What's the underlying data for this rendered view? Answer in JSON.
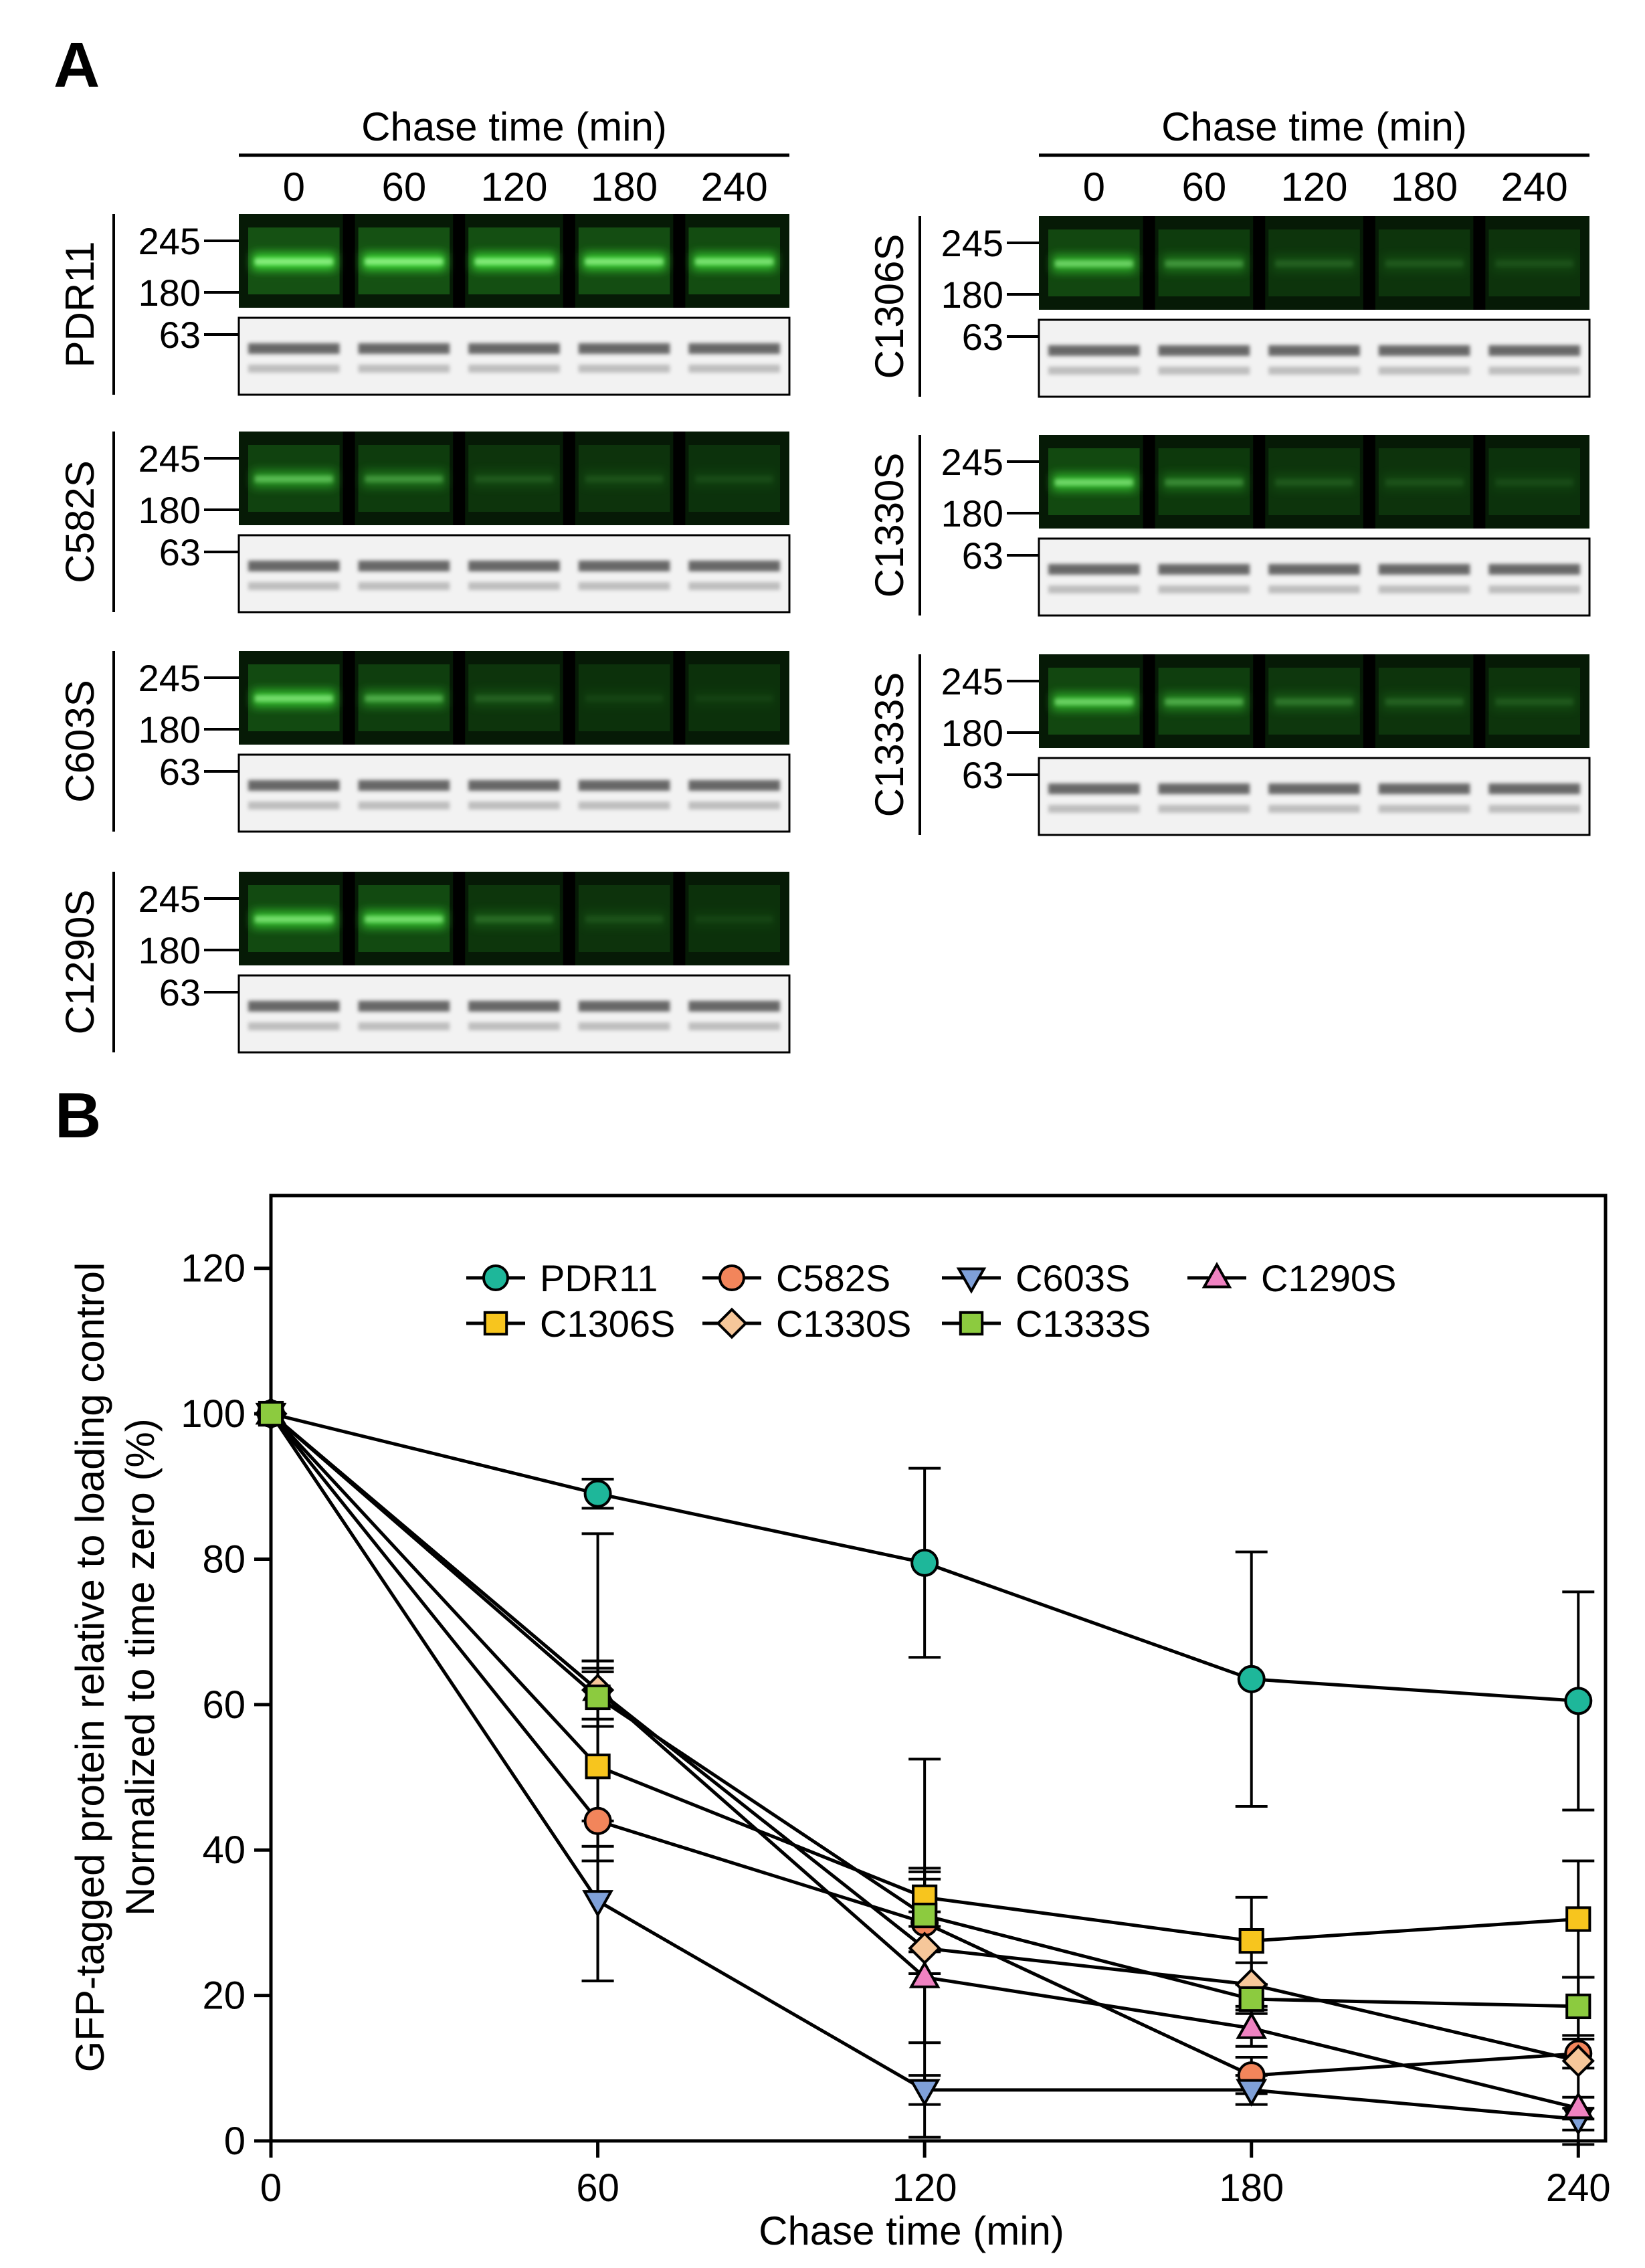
{
  "figure": {
    "panel_a_label": "A",
    "panel_b_label": "B"
  },
  "blots": {
    "header_title": "Chase time (min)",
    "time_labels": [
      "0",
      "60",
      "120",
      "180",
      "240"
    ],
    "mw_labels": [
      "245",
      "180",
      "63"
    ],
    "left_column": [
      {
        "name": "PDR11",
        "gfp_intensity": [
          1.0,
          1.0,
          0.95,
          0.9,
          0.85
        ]
      },
      {
        "name": "C582S",
        "gfp_intensity": [
          0.55,
          0.35,
          0.12,
          0.1,
          0.08
        ]
      },
      {
        "name": "C603S",
        "gfp_intensity": [
          0.8,
          0.45,
          0.15,
          0.06,
          0.05
        ]
      },
      {
        "name": "C1290S",
        "gfp_intensity": [
          0.8,
          0.8,
          0.18,
          0.1,
          0.06
        ]
      }
    ],
    "right_column": [
      {
        "name": "C1306S",
        "gfp_intensity": [
          0.7,
          0.35,
          0.15,
          0.12,
          0.1
        ]
      },
      {
        "name": "C1330S",
        "gfp_intensity": [
          0.75,
          0.3,
          0.12,
          0.1,
          0.08
        ]
      },
      {
        "name": "C1333S",
        "gfp_intensity": [
          0.7,
          0.45,
          0.22,
          0.15,
          0.12
        ]
      }
    ],
    "colors": {
      "gfp": "#37d231",
      "gel_bg": "#f2f2f2",
      "gel_band": "#3a3a3a"
    }
  },
  "chart_data": {
    "type": "line",
    "xlabel": "Chase time (min)",
    "ylabel_line1": "GFP-tagged protein relative to loading control",
    "ylabel_line2": "Normalized to time zero (%)",
    "x": [
      0,
      60,
      120,
      180,
      240
    ],
    "xlim": [
      0,
      245
    ],
    "ylim": [
      0,
      130
    ],
    "xticks": [
      0,
      60,
      120,
      180,
      240
    ],
    "yticks": [
      0,
      20,
      40,
      60,
      80,
      100,
      120
    ],
    "legend_position": "top",
    "series": [
      {
        "name": "PDR11",
        "marker": "circle",
        "color": "#1eb79a",
        "values": [
          100,
          89,
          79.5,
          63.5,
          60.5
        ],
        "errors": [
          0,
          2,
          13,
          17.5,
          15
        ]
      },
      {
        "name": "C582S",
        "marker": "circle",
        "color": "#f2855b",
        "values": [
          100,
          44,
          30,
          9,
          12
        ],
        "errors": [
          0,
          22,
          7,
          2.5,
          2
        ]
      },
      {
        "name": "C603S",
        "marker": "triangle-down",
        "color": "#7fa0d8",
        "values": [
          100,
          33,
          7,
          7,
          3
        ],
        "errors": [
          0,
          11,
          2,
          2,
          1.5
        ]
      },
      {
        "name": "C1290S",
        "marker": "triangle-up",
        "color": "#ef82c1",
        "values": [
          100,
          62,
          22.5,
          15.5,
          4.5
        ],
        "errors": [
          0,
          4,
          9,
          2.5,
          1.5
        ]
      },
      {
        "name": "C1306S",
        "marker": "square",
        "color": "#f7c51e",
        "values": [
          100,
          51.5,
          33.5,
          27.5,
          30.5
        ],
        "errors": [
          0,
          13,
          4,
          6,
          8
        ]
      },
      {
        "name": "C1330S",
        "marker": "diamond",
        "color": "#f6c79a",
        "values": [
          100,
          62,
          26.5,
          21.5,
          11
        ],
        "errors": [
          0,
          21.5,
          26,
          3,
          11.5
        ]
      },
      {
        "name": "C1333S",
        "marker": "square",
        "color": "#8ccb3f",
        "values": [
          100,
          61,
          31,
          19.5,
          18.5
        ],
        "errors": [
          0,
          4,
          5,
          2,
          4
        ]
      }
    ]
  }
}
